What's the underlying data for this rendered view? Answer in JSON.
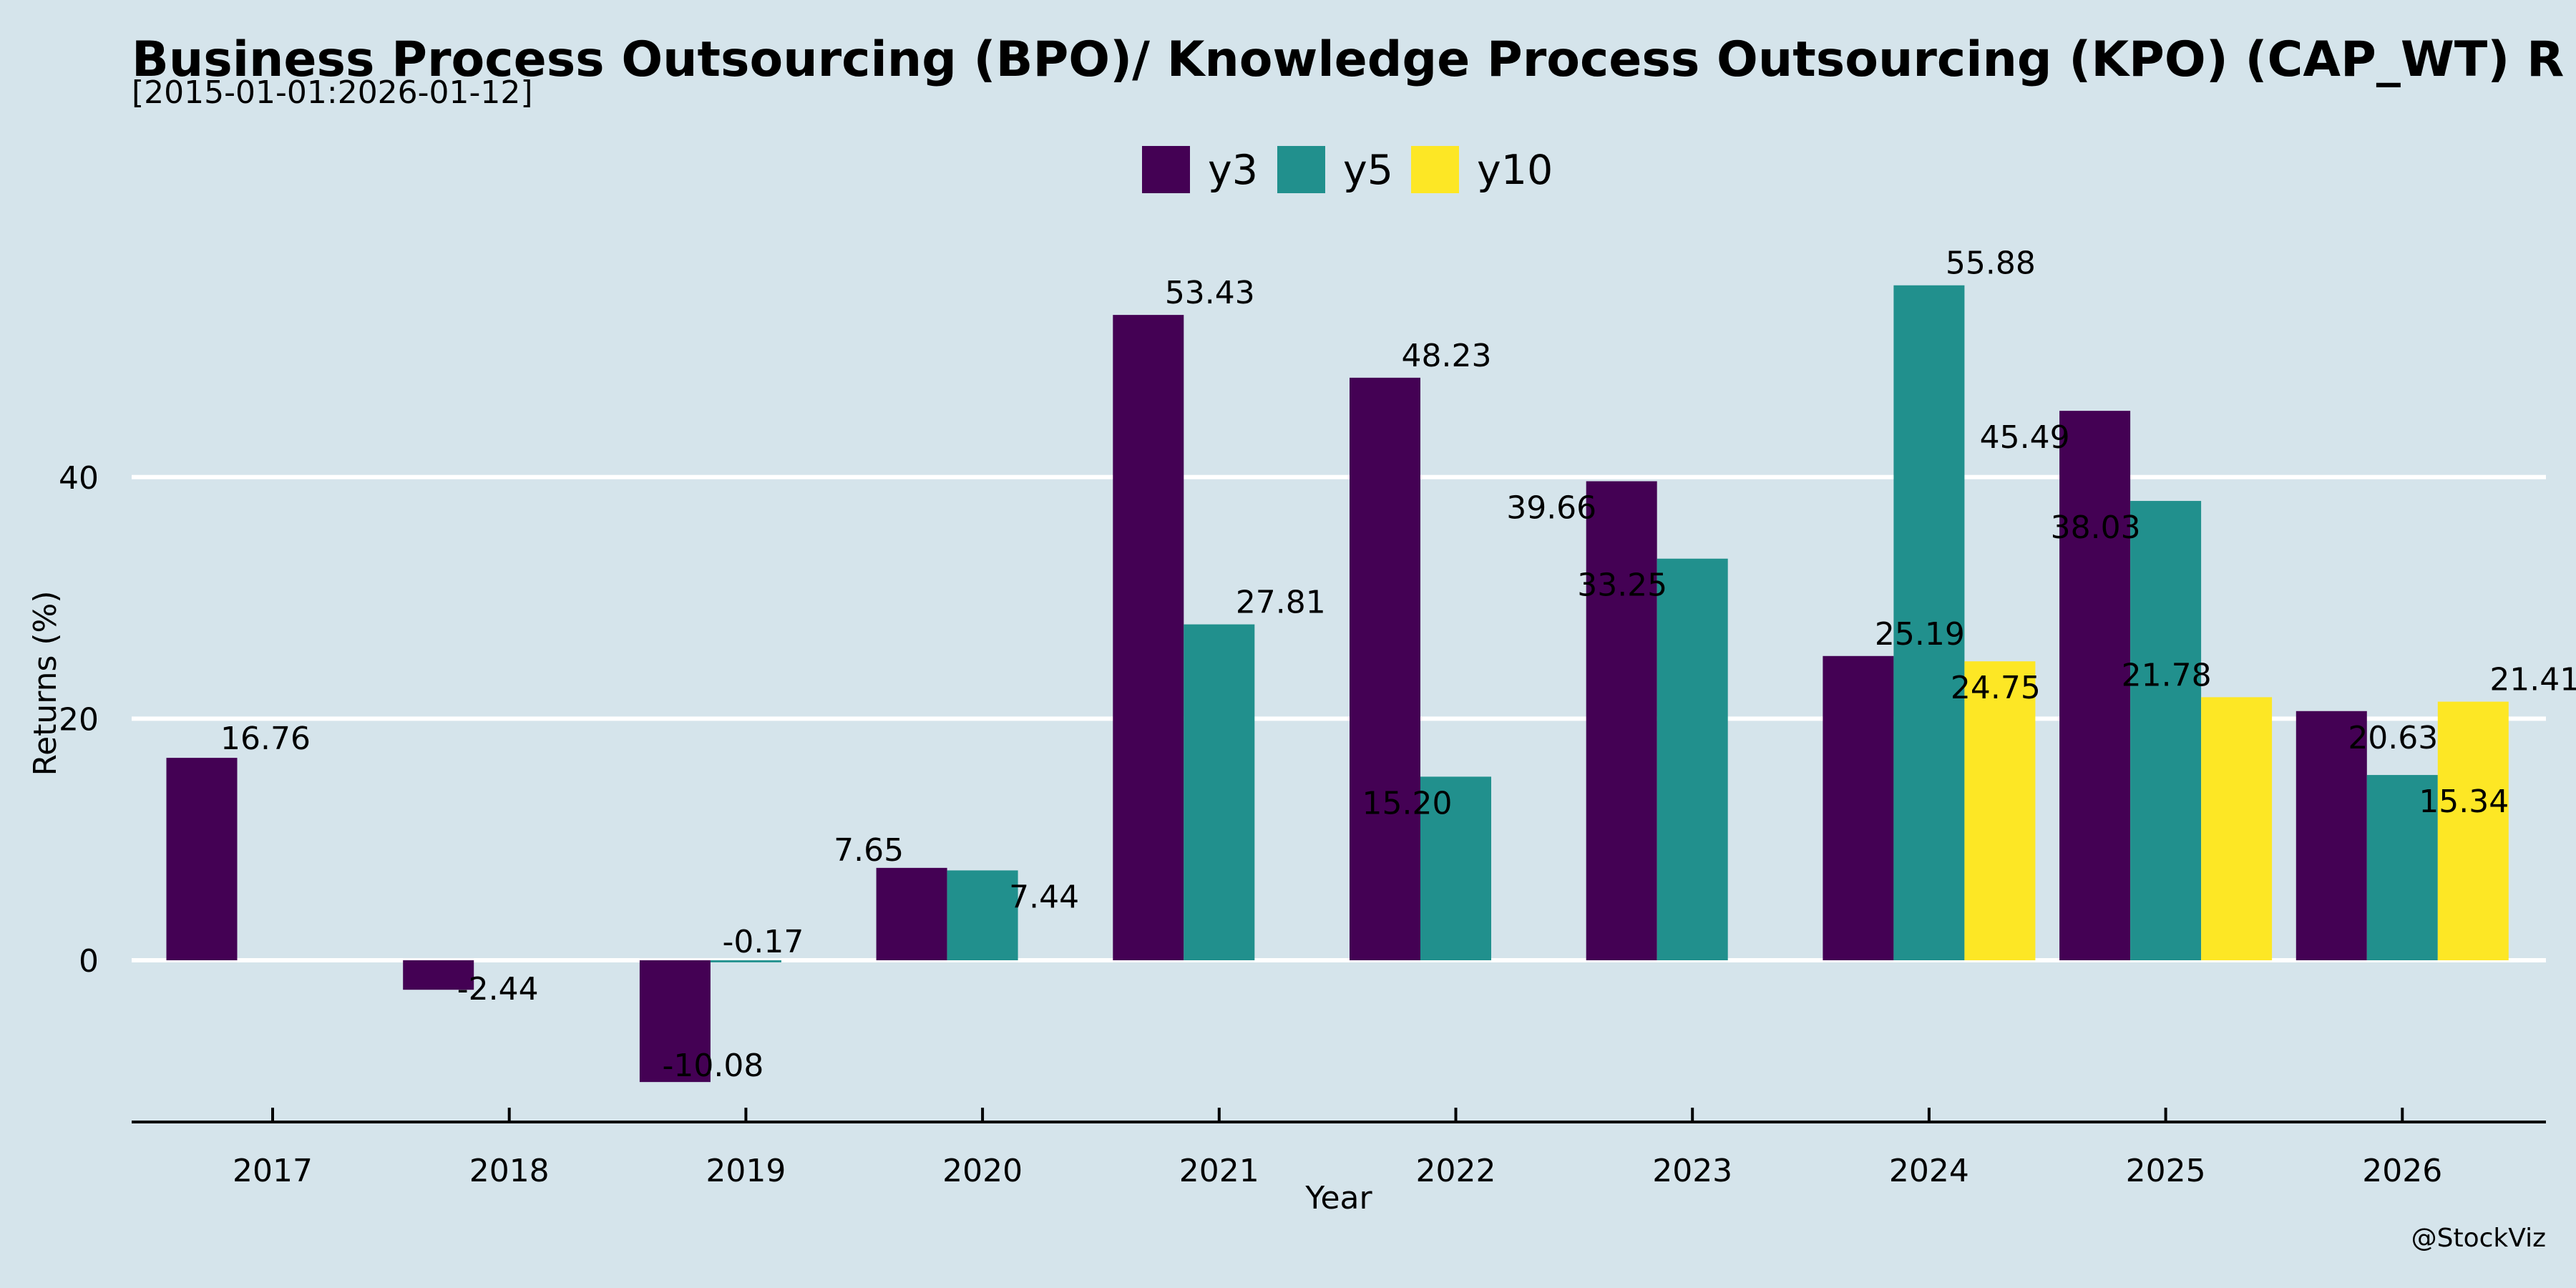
{
  "chart_data": {
    "type": "bar",
    "title": "Business Process Outsourcing (BPO)/ Knowledge Process Outsourcing (KPO) (CAP_WT) R",
    "subtitle": "[2015-01-01:2026-01-12]",
    "xlabel": "Year",
    "ylabel": "Returns (%)",
    "categories": [
      "2017",
      "2018",
      "2019",
      "2020",
      "2021",
      "2022",
      "2023",
      "2024",
      "2025",
      "2026"
    ],
    "series": [
      {
        "name": "y3",
        "color": "#440154",
        "values": [
          16.76,
          -2.44,
          -10.08,
          7.65,
          53.43,
          48.23,
          39.66,
          25.19,
          45.49,
          20.63
        ]
      },
      {
        "name": "y5",
        "color": "#21908d",
        "values": [
          null,
          null,
          -0.17,
          7.44,
          27.81,
          15.2,
          33.25,
          55.88,
          38.03,
          15.34
        ]
      },
      {
        "name": "y10",
        "color": "#fde725",
        "values": [
          null,
          null,
          null,
          null,
          null,
          null,
          null,
          24.75,
          21.78,
          21.41
        ]
      }
    ],
    "data_labels": [
      {
        "series": "y3",
        "year": "2017",
        "text": "16.76"
      },
      {
        "series": "y3",
        "year": "2018",
        "text": "-2.44"
      },
      {
        "series": "y3",
        "year": "2019",
        "text": "-10.08"
      },
      {
        "series": "y5",
        "year": "2019",
        "text": "-0.17"
      },
      {
        "series": "y3",
        "year": "2020",
        "text": "7.65"
      },
      {
        "series": "y5",
        "year": "2020",
        "text": "7.44"
      },
      {
        "series": "y3",
        "year": "2021",
        "text": "53.43"
      },
      {
        "series": "y5",
        "year": "2021",
        "text": "27.81"
      },
      {
        "series": "y3",
        "year": "2022",
        "text": "48.23"
      },
      {
        "series": "y5",
        "year": "2022",
        "text": "15.20"
      },
      {
        "series": "y3",
        "year": "2023",
        "text": "39.66"
      },
      {
        "series": "y5",
        "year": "2023",
        "text": "33.25"
      },
      {
        "series": "y3",
        "year": "2024",
        "text": "25.19"
      },
      {
        "series": "y5",
        "year": "2024",
        "text": "55.88"
      },
      {
        "series": "y10",
        "year": "2024",
        "text": "24.75"
      },
      {
        "series": "y3",
        "year": "2025",
        "text": "45.49"
      },
      {
        "series": "y5",
        "year": "2025",
        "text": "38.03"
      },
      {
        "series": "y10",
        "year": "2025",
        "text": "21.78"
      },
      {
        "series": "y3",
        "year": "2026",
        "text": "20.63"
      },
      {
        "series": "y5",
        "year": "2026",
        "text": "15.34"
      },
      {
        "series": "y10",
        "year": "2026",
        "text": "21.41"
      }
    ],
    "yticks": [
      0,
      20,
      40
    ],
    "ylim": [
      -13.5,
      58.5
    ],
    "grid": true,
    "legend_position": "top-center",
    "background": "#d5e4eb",
    "gridline_color": "#ffffff",
    "watermark": "@StockViz"
  }
}
